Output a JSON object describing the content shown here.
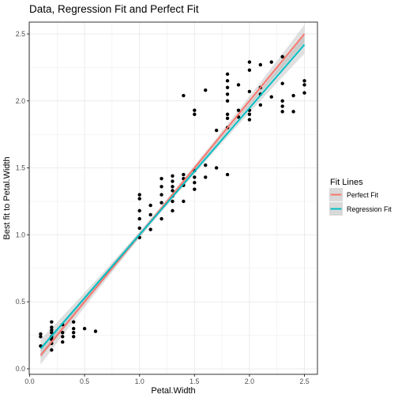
{
  "chart_data": {
    "type": "scatter",
    "title": "Data, Regression Fit and Perfect Fit",
    "xlabel": "Petal.Width",
    "ylabel": "Best fit to Petal.Width",
    "xlim": [
      0.0,
      2.6
    ],
    "ylim": [
      0.0,
      2.6
    ],
    "x_ticks": [
      "0.0",
      "0.5",
      "1.0",
      "1.5",
      "2.0",
      "2.5"
    ],
    "y_ticks": [
      "0.0",
      "0.5",
      "1.0",
      "1.5",
      "2.0",
      "2.5"
    ],
    "grid": true,
    "legend": {
      "title": "Fit Lines",
      "position": "right",
      "entries": [
        "Perfect Fit",
        "Regression Fit"
      ]
    },
    "colors": {
      "perfect_fit": "#F8766D",
      "regression_fit": "#00BFC4",
      "points": "#000000",
      "confidence_band": "#999999"
    },
    "lines": [
      {
        "name": "Perfect Fit",
        "x": [
          0.1,
          2.5
        ],
        "y": [
          0.1,
          2.5
        ]
      },
      {
        "name": "Regression Fit",
        "x": [
          0.1,
          2.5
        ],
        "y": [
          0.15,
          2.42
        ]
      }
    ],
    "points": [
      [
        0.1,
        0.17
      ],
      [
        0.1,
        0.24
      ],
      [
        0.1,
        0.26
      ],
      [
        0.2,
        0.14
      ],
      [
        0.2,
        0.19
      ],
      [
        0.2,
        0.22
      ],
      [
        0.2,
        0.24
      ],
      [
        0.2,
        0.27
      ],
      [
        0.2,
        0.29
      ],
      [
        0.2,
        0.31
      ],
      [
        0.2,
        0.35
      ],
      [
        0.3,
        0.2
      ],
      [
        0.3,
        0.24
      ],
      [
        0.3,
        0.27
      ],
      [
        0.3,
        0.33
      ],
      [
        0.4,
        0.24
      ],
      [
        0.4,
        0.27
      ],
      [
        0.4,
        0.3
      ],
      [
        0.4,
        0.35
      ],
      [
        0.5,
        0.3
      ],
      [
        0.6,
        0.28
      ],
      [
        1.0,
        0.98
      ],
      [
        1.0,
        1.05
      ],
      [
        1.0,
        1.12
      ],
      [
        1.0,
        1.18
      ],
      [
        1.0,
        1.27
      ],
      [
        1.0,
        1.3
      ],
      [
        1.1,
        1.04
      ],
      [
        1.1,
        1.15
      ],
      [
        1.1,
        1.22
      ],
      [
        1.2,
        1.12
      ],
      [
        1.2,
        1.24
      ],
      [
        1.2,
        1.3
      ],
      [
        1.2,
        1.36
      ],
      [
        1.2,
        1.42
      ],
      [
        1.3,
        1.18
      ],
      [
        1.3,
        1.25
      ],
      [
        1.3,
        1.29
      ],
      [
        1.3,
        1.33
      ],
      [
        1.3,
        1.36
      ],
      [
        1.3,
        1.4
      ],
      [
        1.3,
        1.44
      ],
      [
        1.4,
        1.25
      ],
      [
        1.4,
        1.37
      ],
      [
        1.4,
        1.42
      ],
      [
        1.4,
        1.45
      ],
      [
        1.4,
        2.04
      ],
      [
        1.5,
        1.34
      ],
      [
        1.5,
        1.39
      ],
      [
        1.5,
        1.43
      ],
      [
        1.5,
        1.48
      ],
      [
        1.5,
        1.9
      ],
      [
        1.5,
        1.93
      ],
      [
        1.6,
        1.43
      ],
      [
        1.6,
        1.52
      ],
      [
        1.6,
        2.08
      ],
      [
        1.7,
        1.5
      ],
      [
        1.7,
        1.78
      ],
      [
        1.8,
        1.45
      ],
      [
        1.8,
        1.8
      ],
      [
        1.8,
        1.87
      ],
      [
        1.8,
        1.9
      ],
      [
        1.8,
        2.0
      ],
      [
        1.8,
        2.05
      ],
      [
        1.8,
        2.1
      ],
      [
        1.8,
        2.15
      ],
      [
        1.8,
        2.2
      ],
      [
        1.9,
        1.88
      ],
      [
        1.9,
        1.93
      ],
      [
        1.9,
        2.12
      ],
      [
        2.0,
        1.86
      ],
      [
        2.0,
        1.9
      ],
      [
        2.0,
        1.93
      ],
      [
        2.0,
        2.07
      ],
      [
        2.0,
        2.23
      ],
      [
        2.0,
        2.29
      ],
      [
        2.1,
        1.97
      ],
      [
        2.1,
        2.05
      ],
      [
        2.1,
        2.1
      ],
      [
        2.1,
        2.27
      ],
      [
        2.2,
        2.03
      ],
      [
        2.2,
        2.29
      ],
      [
        2.3,
        1.92
      ],
      [
        2.3,
        1.96
      ],
      [
        2.3,
        2.0
      ],
      [
        2.3,
        2.13
      ],
      [
        2.3,
        2.33
      ],
      [
        2.4,
        1.92
      ],
      [
        2.4,
        2.04
      ],
      [
        2.5,
        2.06
      ],
      [
        2.5,
        2.12
      ],
      [
        2.5,
        2.15
      ]
    ]
  }
}
